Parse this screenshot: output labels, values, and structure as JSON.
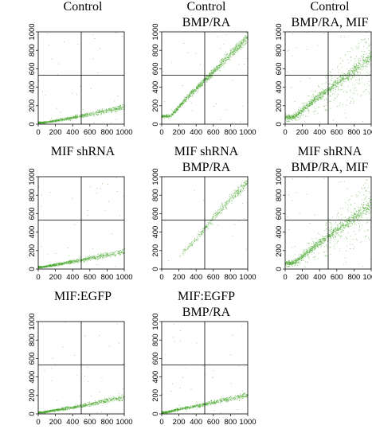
{
  "chart_data": [
    {
      "type": "scatter",
      "title_lines": [
        "Control",
        ""
      ],
      "xlim": [
        0,
        1000
      ],
      "ylim": [
        0,
        1000
      ],
      "xticks": [
        "0",
        "200",
        "400",
        "600",
        "800",
        "1000"
      ],
      "yticks": [
        "0",
        "200",
        "400",
        "600",
        "800",
        "1000"
      ],
      "gates": {
        "x": 500,
        "y": 530
      },
      "dot_color": "#4aa82e",
      "series": [
        {
          "pattern": "low-diagonal",
          "values": [
            [
              50,
              20
            ],
            [
              200,
              40
            ],
            [
              400,
              75
            ],
            [
              600,
              110
            ],
            [
              800,
              150
            ],
            [
              1000,
              190
            ]
          ]
        }
      ]
    },
    {
      "type": "scatter",
      "title_lines": [
        "Control",
        "BMP/RA"
      ],
      "xlim": [
        0,
        1000
      ],
      "ylim": [
        0,
        1000
      ],
      "xticks": [
        "0",
        "200",
        "400",
        "600",
        "800",
        "1000"
      ],
      "yticks": [
        "0",
        "200",
        "400",
        "600",
        "800",
        "1000"
      ],
      "gates": {
        "x": 500,
        "y": 530
      },
      "dot_color": "#4aa82e",
      "series": [
        {
          "pattern": "steep-diagonal",
          "values": [
            [
              100,
              90
            ],
            [
              300,
              300
            ],
            [
              500,
              480
            ],
            [
              700,
              670
            ],
            [
              900,
              860
            ],
            [
              1000,
              950
            ]
          ]
        }
      ]
    },
    {
      "type": "scatter",
      "title_lines": [
        "Control",
        "BMP/RA, MIF"
      ],
      "xlim": [
        0,
        1000
      ],
      "ylim": [
        0,
        1000
      ],
      "xticks": [
        "0",
        "200",
        "400",
        "600",
        "800",
        "1000"
      ],
      "yticks": [
        "0",
        "200",
        "400",
        "600",
        "800",
        "1000"
      ],
      "gates": {
        "x": 500,
        "y": 530
      },
      "dot_color": "#4aa82e",
      "series": [
        {
          "pattern": "fan-diagonal",
          "values": [
            [
              100,
              80
            ],
            [
              300,
              240
            ],
            [
              500,
              380
            ],
            [
              700,
              520
            ],
            [
              900,
              660
            ],
            [
              1000,
              730
            ]
          ]
        }
      ]
    },
    {
      "type": "scatter",
      "title_lines": [
        "MIF shRNA",
        ""
      ],
      "xlim": [
        0,
        1000
      ],
      "ylim": [
        0,
        1000
      ],
      "xticks": [
        "0",
        "200",
        "400",
        "600",
        "800",
        "1000"
      ],
      "yticks": [
        "0",
        "200",
        "400",
        "600",
        "800",
        "1000"
      ],
      "gates": {
        "x": 500,
        "y": 530
      },
      "dot_color": "#4aa82e",
      "series": [
        {
          "pattern": "low-diagonal",
          "values": [
            [
              50,
              25
            ],
            [
              200,
              50
            ],
            [
              400,
              85
            ],
            [
              600,
              120
            ],
            [
              800,
              155
            ],
            [
              1000,
              190
            ]
          ]
        }
      ]
    },
    {
      "type": "scatter",
      "title_lines": [
        "MIF shRNA",
        "BMP/RA"
      ],
      "xlim": [
        0,
        1000
      ],
      "ylim": [
        0,
        1000
      ],
      "xticks": [
        "0",
        "200",
        "400",
        "600",
        "800",
        "1000"
      ],
      "yticks": [
        "0",
        "200",
        "400",
        "600",
        "800",
        "1000"
      ],
      "gates": {
        "x": 500,
        "y": 530
      },
      "dot_color": "#4aa82e",
      "series": [
        {
          "pattern": "sparse-diagonal",
          "values": [
            [
              200,
              150
            ],
            [
              400,
              330
            ],
            [
              600,
              560
            ],
            [
              800,
              770
            ],
            [
              1000,
              950
            ]
          ]
        }
      ]
    },
    {
      "type": "scatter",
      "title_lines": [
        "MIF shRNA",
        "BMP/RA, MIF"
      ],
      "xlim": [
        0,
        1000
      ],
      "ylim": [
        0,
        1000
      ],
      "xticks": [
        "0",
        "200",
        "400",
        "600",
        "800",
        "1000"
      ],
      "yticks": [
        "0",
        "200",
        "400",
        "600",
        "800",
        "1000"
      ],
      "gates": {
        "x": 500,
        "y": 530
      },
      "dot_color": "#4aa82e",
      "series": [
        {
          "pattern": "fan-diagonal",
          "values": [
            [
              100,
              70
            ],
            [
              300,
              220
            ],
            [
              500,
              360
            ],
            [
              700,
              500
            ],
            [
              900,
              630
            ],
            [
              1000,
              700
            ]
          ]
        }
      ]
    },
    {
      "type": "scatter",
      "title_lines": [
        "MIF:EGFP",
        ""
      ],
      "xlim": [
        0,
        1000
      ],
      "ylim": [
        0,
        1000
      ],
      "xticks": [
        "0",
        "200",
        "400",
        "600",
        "800",
        "1000"
      ],
      "yticks": [
        "0",
        "200",
        "400",
        "600",
        "800",
        "1000"
      ],
      "gates": {
        "x": 500,
        "y": 530
      },
      "dot_color": "#4aa82e",
      "series": [
        {
          "pattern": "low-diagonal",
          "values": [
            [
              50,
              20
            ],
            [
              200,
              45
            ],
            [
              400,
              75
            ],
            [
              600,
              110
            ],
            [
              800,
              150
            ],
            [
              1000,
              180
            ]
          ]
        }
      ]
    },
    {
      "type": "scatter",
      "title_lines": [
        "MIF:EGFP",
        "BMP/RA"
      ],
      "xlim": [
        0,
        1000
      ],
      "ylim": [
        0,
        1000
      ],
      "xticks": [
        "0",
        "200",
        "400",
        "600",
        "800",
        "1000"
      ],
      "yticks": [
        "0",
        "200",
        "400",
        "600",
        "800",
        "1000"
      ],
      "gates": {
        "x": 500,
        "y": 530
      },
      "dot_color": "#4aa82e",
      "series": [
        {
          "pattern": "low-diagonal",
          "values": [
            [
              50,
              20
            ],
            [
              200,
              55
            ],
            [
              400,
              90
            ],
            [
              600,
              130
            ],
            [
              800,
              170
            ],
            [
              1000,
              210
            ]
          ]
        }
      ]
    }
  ]
}
